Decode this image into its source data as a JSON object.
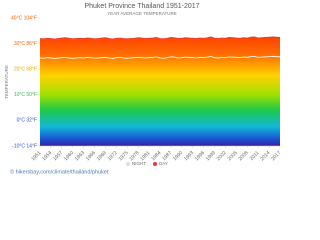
{
  "chart_data": {
    "type": "area",
    "title": "Phuket Province Thailand 1951-2017",
    "subtitle": "YEAR AVERAGE TEMPERATURE",
    "y_label": "TEMPERATURE",
    "footer": "© hikersbay.com/climate/thailand/phuket",
    "x": [
      1951,
      1952,
      1953,
      1954,
      1955,
      1956,
      1957,
      1958,
      1959,
      1960,
      1961,
      1962,
      1963,
      1964,
      1965,
      1966,
      1967,
      1968,
      1969,
      1970,
      1971,
      1972,
      1973,
      1974,
      1975,
      1976,
      1977,
      1978,
      1979,
      1980,
      1981,
      1982,
      1983,
      1984,
      1985,
      1986,
      1987,
      1988,
      1989,
      1990,
      1991,
      1992,
      1993,
      1994,
      1995,
      1996,
      1997,
      1998,
      1999,
      2000,
      2001,
      2002,
      2003,
      2004,
      2005,
      2006,
      2007,
      2008,
      2009,
      2010,
      2011,
      2012,
      2013,
      2014,
      2015,
      2016,
      2017
    ],
    "xlim": [
      1951,
      2017
    ],
    "xticks": [
      1951,
      1954,
      1957,
      1960,
      1963,
      1966,
      1969,
      1972,
      1975,
      1978,
      1981,
      1984,
      1987,
      1990,
      1993,
      1996,
      1999,
      2002,
      2005,
      2008,
      2011,
      2014,
      2017
    ],
    "ylim": [
      -10,
      40
    ],
    "yticks": [
      {
        "value": 40,
        "label": "40°C 104°F"
      },
      {
        "value": 30,
        "label": "30°C 86°F"
      },
      {
        "value": 20,
        "label": "20°C 68°F"
      },
      {
        "value": 10,
        "label": "10°C 50°F"
      },
      {
        "value": 0,
        "label": "0°C 32°F"
      },
      {
        "value": -10,
        "label": "-10°C 14°F"
      }
    ],
    "series": [
      {
        "name": "NIGHT",
        "color": "#ffffff",
        "values": [
          24.4,
          24.3,
          24.5,
          24.4,
          24.2,
          24.4,
          24.5,
          24.6,
          24.4,
          24.3,
          24.4,
          24.5,
          24.4,
          24.6,
          24.5,
          24.3,
          24.4,
          24.5,
          24.6,
          24.4,
          24.2,
          24.5,
          24.6,
          24.4,
          24.3,
          24.4,
          24.5,
          24.6,
          24.5,
          24.4,
          24.5,
          24.6,
          24.8,
          24.4,
          24.3,
          24.5,
          24.8,
          24.7,
          24.4,
          24.5,
          24.7,
          24.6,
          24.5,
          24.4,
          24.6,
          24.5,
          24.7,
          25.0,
          24.5,
          24.4,
          24.6,
          24.5,
          24.8,
          24.7,
          24.6,
          24.5,
          24.7,
          24.6,
          24.9,
          25.0,
          24.6,
          24.7,
          24.8,
          24.9,
          25.0,
          24.9,
          24.8
        ]
      },
      {
        "name": "DAY",
        "color": "#e53935",
        "values": [
          32.0,
          31.9,
          32.1,
          32.0,
          31.8,
          32.0,
          32.2,
          32.3,
          32.1,
          31.9,
          32.0,
          32.1,
          32.0,
          32.2,
          32.1,
          31.9,
          32.0,
          32.2,
          32.3,
          32.0,
          31.8,
          32.1,
          32.2,
          32.0,
          31.9,
          32.0,
          32.1,
          32.3,
          32.2,
          32.0,
          32.1,
          32.2,
          32.4,
          32.0,
          31.9,
          32.1,
          32.4,
          32.3,
          32.0,
          32.1,
          32.3,
          32.2,
          32.1,
          32.0,
          32.2,
          32.1,
          32.3,
          32.6,
          32.1,
          32.0,
          32.2,
          32.1,
          32.4,
          32.3,
          32.2,
          32.1,
          32.3,
          32.2,
          32.5,
          32.6,
          32.2,
          32.3,
          32.4,
          32.5,
          32.6,
          32.5,
          32.4
        ]
      }
    ]
  }
}
